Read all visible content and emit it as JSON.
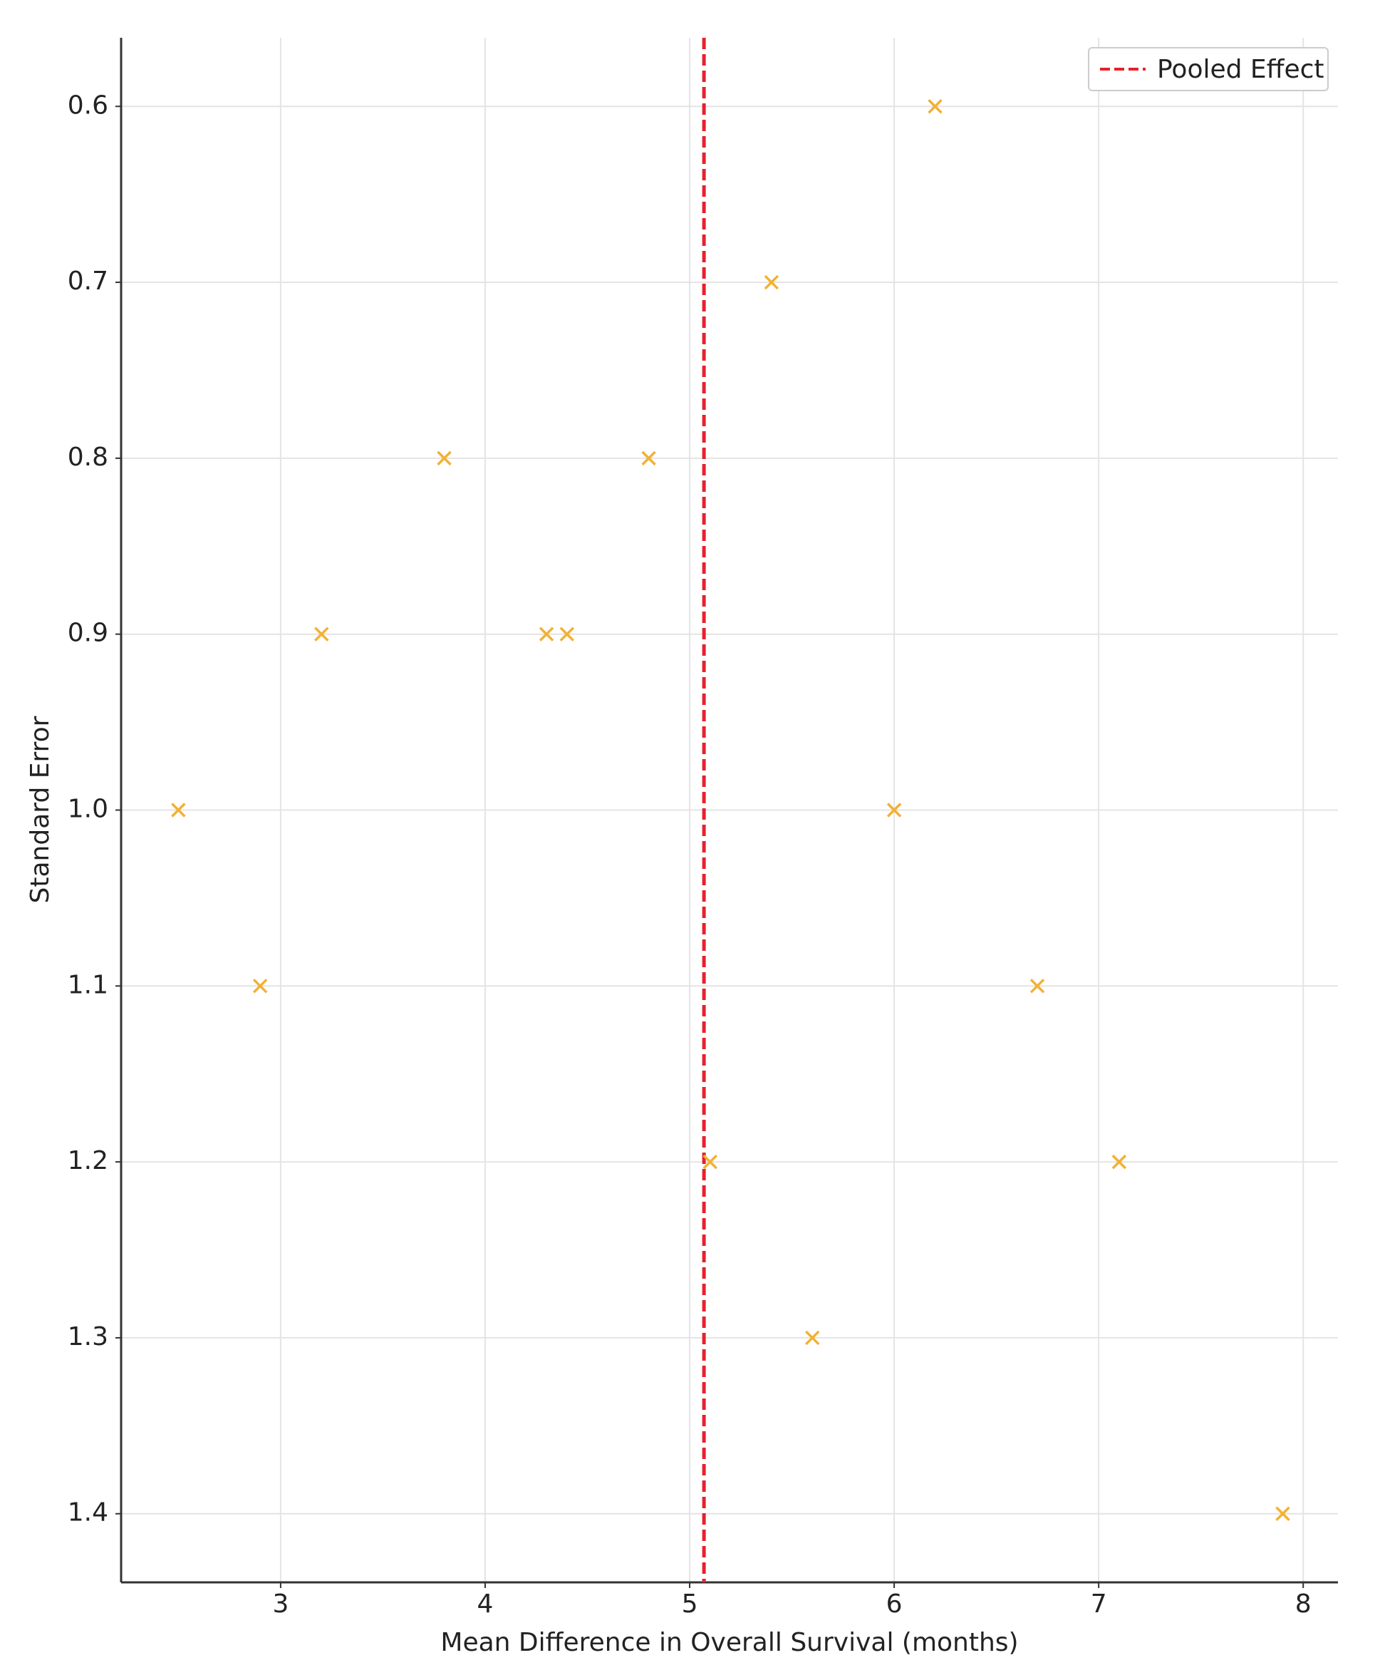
{
  "chart_data": {
    "type": "scatter",
    "x_label": "Mean Difference in Overall Survival (months)",
    "y_label": "Standard Error",
    "series": [
      {
        "color": "#f2b134",
        "marker": "x",
        "x": [
          6.2,
          5.4,
          3.8,
          4.8,
          3.2,
          4.3,
          4.4,
          2.5,
          6.0,
          2.9,
          6.7,
          5.1,
          7.1,
          5.6,
          7.9
        ],
        "values": [
          0.6,
          0.7,
          0.8,
          0.8,
          0.9,
          0.9,
          0.9,
          1.0,
          1.0,
          1.1,
          1.1,
          1.2,
          1.2,
          1.3,
          1.4
        ]
      }
    ],
    "reference_line": {
      "name": "Pooled Effect",
      "x": 5.07,
      "color": "#e8202a",
      "dashed": true
    },
    "xlim": [
      2.22,
      8.17
    ],
    "xticks": [
      3,
      4,
      5,
      6,
      7,
      8
    ],
    "ylim": [
      0.561,
      1.439
    ],
    "y_inverted": true,
    "yticks": [
      0.6,
      0.7,
      0.8,
      0.9,
      {
        "value": 1,
        "label": "1.0"
      },
      1.1,
      1.2,
      1.3,
      1.4
    ],
    "grid": true,
    "legend": "upper right"
  }
}
